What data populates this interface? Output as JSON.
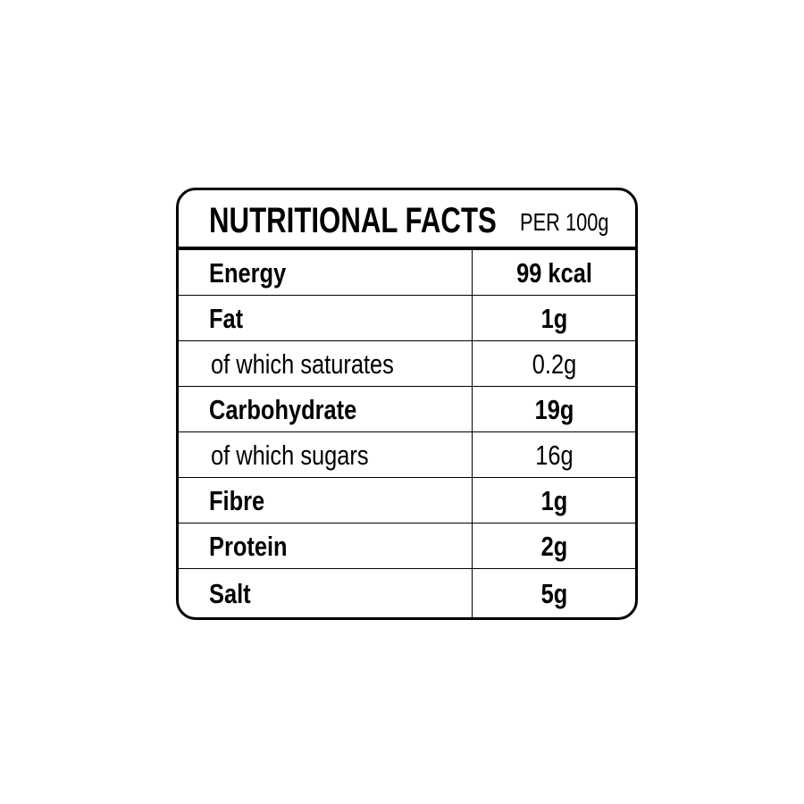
{
  "header": {
    "title": "NUTRITIONAL FACTS",
    "subtitle": "PER 100g"
  },
  "table": {
    "rows": [
      [
        "Energy",
        "99 kcal"
      ],
      [
        "Fat",
        "1g"
      ],
      [
        "of which saturates",
        "0.2g"
      ],
      [
        "Carbohydrate",
        "19g"
      ],
      [
        "of which sugars",
        "16g"
      ],
      [
        "Fibre",
        "1g"
      ],
      [
        "Protein",
        "2g"
      ],
      [
        "Salt",
        "5g"
      ]
    ]
  }
}
